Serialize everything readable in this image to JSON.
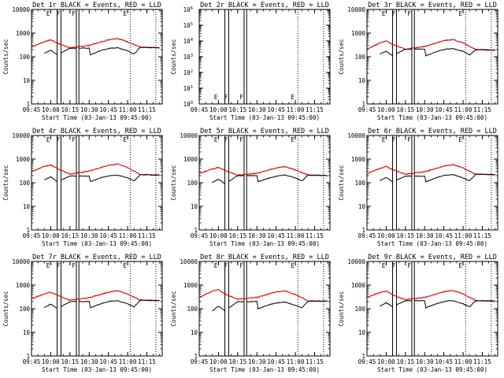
{
  "chart_data": {
    "type": "line",
    "common": {
      "xlabel": "Start Time (03-Jan-13 09:45:00)",
      "ylabel": "Counts/sec",
      "x_ticks": [
        {
          "t": 0,
          "label": "09:45"
        },
        {
          "t": 15,
          "label": "10:00"
        },
        {
          "t": 30,
          "label": "10:15"
        },
        {
          "t": 45,
          "label": "10:30"
        },
        {
          "t": 60,
          "label": "10:45"
        },
        {
          "t": 75,
          "label": "11:00"
        },
        {
          "t": 90,
          "label": "11:15"
        }
      ],
      "xlim_minutes": [
        0,
        102
      ],
      "ylim": [
        1,
        10000
      ],
      "y_ticks": [
        {
          "v": 1,
          "label": "1"
        },
        {
          "v": 10,
          "label": "10"
        },
        {
          "v": 100,
          "label": "100"
        },
        {
          "v": 1000,
          "label": "1000"
        },
        {
          "v": 10000,
          "label": "10000"
        }
      ],
      "solid_lines_minutes": [
        20,
        23,
        35,
        37
      ],
      "dotted_lines_minutes": [
        77,
        97
      ],
      "flag_labels": [
        {
          "t": 13,
          "text": "E"
        },
        {
          "t": 21,
          "text": "F"
        },
        {
          "t": 33,
          "text": "F"
        },
        {
          "t": 73,
          "text": "E"
        }
      ],
      "series_names": [
        "Events",
        "LLD"
      ],
      "series_colors": {
        "events": "#000000",
        "lld": "#e00000"
      }
    },
    "panels": [
      {
        "title": "Det 1r BLACK = Events, RED = LLD",
        "lld_scale": 1.0,
        "events_scale": 1.0,
        "lld": [
          [
            0,
            260
          ],
          [
            10,
            430
          ],
          [
            15,
            520
          ],
          [
            20,
            380
          ],
          [
            30,
            240
          ],
          [
            45,
            300
          ],
          [
            60,
            520
          ],
          [
            67,
            600
          ],
          [
            75,
            430
          ],
          [
            85,
            250
          ],
          [
            100,
            240
          ]
        ],
        "events": [
          [
            10,
            140
          ],
          [
            15,
            190
          ],
          [
            20,
            120
          ],
          [
            30,
            230
          ],
          [
            45,
            230
          ],
          [
            46,
            120
          ],
          [
            55,
            190
          ],
          [
            62,
            230
          ],
          [
            67,
            240
          ],
          [
            75,
            180
          ],
          [
            80,
            130
          ],
          [
            85,
            250
          ],
          [
            100,
            240
          ]
        ]
      },
      {
        "title": "Det 2r BLACK = Events, RED = LLD",
        "empty": true,
        "ylim": [
          1,
          1000000
        ],
        "y_ticks": [
          {
            "v": 1,
            "label": "10^0"
          },
          {
            "v": 10,
            "label": "10^1"
          },
          {
            "v": 100,
            "label": "10^2"
          },
          {
            "v": 1000,
            "label": "10^3"
          },
          {
            "v": 10000,
            "label": "10^4"
          },
          {
            "v": 100000,
            "label": "10^5"
          },
          {
            "v": 1000000,
            "label": "10^6"
          }
        ]
      },
      {
        "title": "Det 3r BLACK = Events, RED = LLD",
        "lld_scale": 0.9,
        "events_scale": 0.95,
        "lld": [
          [
            0,
            210
          ],
          [
            10,
            380
          ],
          [
            15,
            470
          ],
          [
            20,
            330
          ],
          [
            30,
            210
          ],
          [
            45,
            270
          ],
          [
            60,
            480
          ],
          [
            67,
            540
          ],
          [
            75,
            380
          ],
          [
            85,
            200
          ],
          [
            100,
            190
          ]
        ],
        "events": [
          [
            10,
            130
          ],
          [
            15,
            170
          ],
          [
            20,
            110
          ],
          [
            30,
            210
          ],
          [
            45,
            210
          ],
          [
            46,
            110
          ],
          [
            55,
            170
          ],
          [
            62,
            210
          ],
          [
            67,
            220
          ],
          [
            75,
            170
          ],
          [
            80,
            120
          ],
          [
            85,
            200
          ],
          [
            100,
            190
          ]
        ]
      },
      {
        "title": "Det 4r BLACK = Events, RED = LLD",
        "lld_scale": 1.0,
        "events_scale": 1.0,
        "lld": [
          [
            0,
            300
          ],
          [
            10,
            480
          ],
          [
            15,
            560
          ],
          [
            20,
            400
          ],
          [
            30,
            230
          ],
          [
            45,
            310
          ],
          [
            60,
            540
          ],
          [
            67,
            620
          ],
          [
            75,
            440
          ],
          [
            85,
            220
          ],
          [
            100,
            210
          ]
        ],
        "events": [
          [
            10,
            130
          ],
          [
            15,
            180
          ],
          [
            20,
            110
          ],
          [
            30,
            190
          ],
          [
            45,
            190
          ],
          [
            46,
            110
          ],
          [
            55,
            170
          ],
          [
            62,
            200
          ],
          [
            67,
            210
          ],
          [
            75,
            160
          ],
          [
            80,
            120
          ],
          [
            85,
            220
          ],
          [
            100,
            210
          ]
        ]
      },
      {
        "title": "Det 5r BLACK = Events, RED = LLD",
        "lld_scale": 0.8,
        "events_scale": 1.0,
        "lld": [
          [
            0,
            240
          ],
          [
            10,
            380
          ],
          [
            15,
            450
          ],
          [
            20,
            330
          ],
          [
            30,
            210
          ],
          [
            45,
            250
          ],
          [
            60,
            420
          ],
          [
            67,
            480
          ],
          [
            75,
            350
          ],
          [
            85,
            210
          ],
          [
            100,
            200
          ]
        ],
        "events": [
          [
            10,
            100
          ],
          [
            15,
            140
          ],
          [
            20,
            90
          ],
          [
            30,
            200
          ],
          [
            45,
            200
          ],
          [
            46,
            110
          ],
          [
            55,
            160
          ],
          [
            62,
            200
          ],
          [
            67,
            210
          ],
          [
            75,
            160
          ],
          [
            80,
            120
          ],
          [
            85,
            210
          ],
          [
            100,
            200
          ]
        ]
      },
      {
        "title": "Det 6r BLACK = Events, RED = LLD",
        "lld_scale": 1.0,
        "events_scale": 1.0,
        "lld": [
          [
            0,
            240
          ],
          [
            10,
            400
          ],
          [
            15,
            490
          ],
          [
            20,
            360
          ],
          [
            30,
            230
          ],
          [
            45,
            290
          ],
          [
            60,
            500
          ],
          [
            67,
            580
          ],
          [
            75,
            420
          ],
          [
            85,
            230
          ],
          [
            100,
            220
          ]
        ],
        "events": [
          [
            10,
            120
          ],
          [
            15,
            170
          ],
          [
            20,
            110
          ],
          [
            30,
            190
          ],
          [
            45,
            190
          ],
          [
            46,
            110
          ],
          [
            55,
            170
          ],
          [
            62,
            210
          ],
          [
            67,
            220
          ],
          [
            75,
            160
          ],
          [
            80,
            120
          ],
          [
            85,
            230
          ],
          [
            100,
            220
          ]
        ]
      },
      {
        "title": "Det 7r BLACK = Events, RED = LLD",
        "lld_scale": 1.0,
        "events_scale": 1.0,
        "lld": [
          [
            0,
            260
          ],
          [
            10,
            420
          ],
          [
            15,
            500
          ],
          [
            20,
            370
          ],
          [
            30,
            230
          ],
          [
            45,
            290
          ],
          [
            60,
            500
          ],
          [
            67,
            580
          ],
          [
            75,
            420
          ],
          [
            85,
            230
          ],
          [
            100,
            220
          ]
        ],
        "events": [
          [
            10,
            110
          ],
          [
            15,
            160
          ],
          [
            20,
            100
          ],
          [
            30,
            200
          ],
          [
            45,
            200
          ],
          [
            46,
            110
          ],
          [
            55,
            170
          ],
          [
            62,
            210
          ],
          [
            67,
            220
          ],
          [
            75,
            160
          ],
          [
            80,
            120
          ],
          [
            85,
            230
          ],
          [
            100,
            220
          ]
        ]
      },
      {
        "title": "Det 8r BLACK = Events, RED = LLD",
        "lld_scale": 1.0,
        "events_scale": 1.0,
        "lld": [
          [
            0,
            300
          ],
          [
            10,
            550
          ],
          [
            15,
            650
          ],
          [
            20,
            420
          ],
          [
            30,
            250
          ],
          [
            45,
            300
          ],
          [
            60,
            520
          ],
          [
            67,
            560
          ],
          [
            75,
            400
          ],
          [
            85,
            210
          ],
          [
            100,
            210
          ]
        ],
        "events": [
          [
            10,
            80
          ],
          [
            15,
            130
          ],
          [
            20,
            80
          ],
          [
            30,
            200
          ],
          [
            45,
            200
          ],
          [
            46,
            100
          ],
          [
            55,
            150
          ],
          [
            62,
            180
          ],
          [
            67,
            190
          ],
          [
            75,
            140
          ],
          [
            80,
            110
          ],
          [
            85,
            210
          ],
          [
            100,
            210
          ]
        ]
      },
      {
        "title": "Det 9r BLACK = Events, RED = LLD",
        "lld_scale": 1.0,
        "events_scale": 1.0,
        "lld": [
          [
            0,
            300
          ],
          [
            10,
            480
          ],
          [
            15,
            560
          ],
          [
            20,
            390
          ],
          [
            30,
            240
          ],
          [
            45,
            300
          ],
          [
            60,
            520
          ],
          [
            67,
            600
          ],
          [
            75,
            430
          ],
          [
            85,
            220
          ],
          [
            100,
            210
          ]
        ],
        "events": [
          [
            10,
            130
          ],
          [
            15,
            180
          ],
          [
            20,
            120
          ],
          [
            30,
            220
          ],
          [
            45,
            220
          ],
          [
            46,
            110
          ],
          [
            55,
            170
          ],
          [
            62,
            210
          ],
          [
            67,
            220
          ],
          [
            75,
            160
          ],
          [
            80,
            120
          ],
          [
            85,
            220
          ],
          [
            100,
            210
          ]
        ]
      }
    ]
  }
}
